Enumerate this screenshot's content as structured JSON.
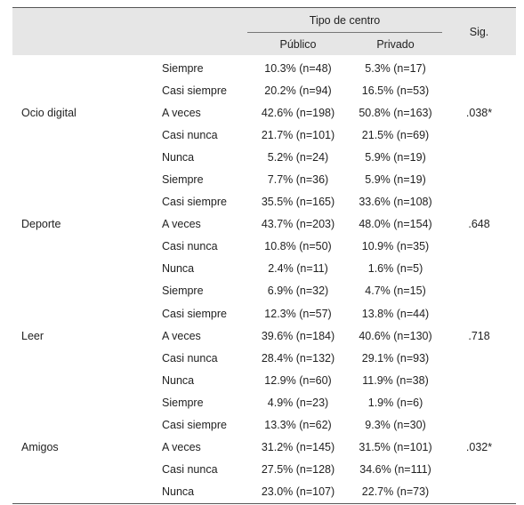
{
  "header": {
    "group": "Tipo de centro",
    "publico": "Público",
    "privado": "Privado",
    "sig": "Sig."
  },
  "groups": [
    {
      "category": "Ocio digital",
      "sig": ".038*",
      "rows": [
        {
          "response": "Siempre",
          "publico": "10.3% (n=48)",
          "privado": "5.3% (n=17)"
        },
        {
          "response": "Casi siempre",
          "publico": "20.2% (n=94)",
          "privado": "16.5% (n=53)"
        },
        {
          "response": "A veces",
          "publico": "42.6% (n=198)",
          "privado": "50.8% (n=163)"
        },
        {
          "response": "Casi nunca",
          "publico": "21.7% (n=101)",
          "privado": "21.5% (n=69)"
        },
        {
          "response": "Nunca",
          "publico": "5.2% (n=24)",
          "privado": "5.9% (n=19)"
        }
      ]
    },
    {
      "category": "Deporte",
      "sig": ".648",
      "rows": [
        {
          "response": "Siempre",
          "publico": "7.7% (n=36)",
          "privado": "5.9% (n=19)"
        },
        {
          "response": "Casi siempre",
          "publico": "35.5% (n=165)",
          "privado": "33.6% (n=108)"
        },
        {
          "response": "A veces",
          "publico": "43.7% (n=203)",
          "privado": "48.0% (n=154)"
        },
        {
          "response": "Casi nunca",
          "publico": "10.8% (n=50)",
          "privado": "10.9% (n=35)"
        },
        {
          "response": "Nunca",
          "publico": "2.4% (n=11)",
          "privado": "1.6% (n=5)"
        }
      ]
    },
    {
      "category": "Leer",
      "sig": ".718",
      "rows": [
        {
          "response": "Siempre",
          "publico": "6.9% (n=32)",
          "privado": "4.7% (n=15)"
        },
        {
          "response": "Casi siempre",
          "publico": "12.3% (n=57)",
          "privado": "13.8% (n=44)"
        },
        {
          "response": "A veces",
          "publico": "39.6% (n=184)",
          "privado": "40.6% (n=130)"
        },
        {
          "response": "Casi nunca",
          "publico": "28.4% (n=132)",
          "privado": "29.1% (n=93)"
        },
        {
          "response": "Nunca",
          "publico": "12.9% (n=60)",
          "privado": "11.9% (n=38)"
        }
      ]
    },
    {
      "category": "Amigos",
      "sig": ".032*",
      "rows": [
        {
          "response": "Siempre",
          "publico": "4.9% (n=23)",
          "privado": "1.9% (n=6)"
        },
        {
          "response": "Casi siempre",
          "publico": "13.3% (n=62)",
          "privado": "9.3% (n=30)"
        },
        {
          "response": "A veces",
          "publico": "31.2% (n=145)",
          "privado": "31.5% (n=101)"
        },
        {
          "response": "Casi nunca",
          "publico": "27.5% (n=128)",
          "privado": "34.6% (n=111)"
        },
        {
          "response": "Nunca",
          "publico": "23.0% (n=107)",
          "privado": "22.7% (n=73)"
        }
      ]
    }
  ]
}
